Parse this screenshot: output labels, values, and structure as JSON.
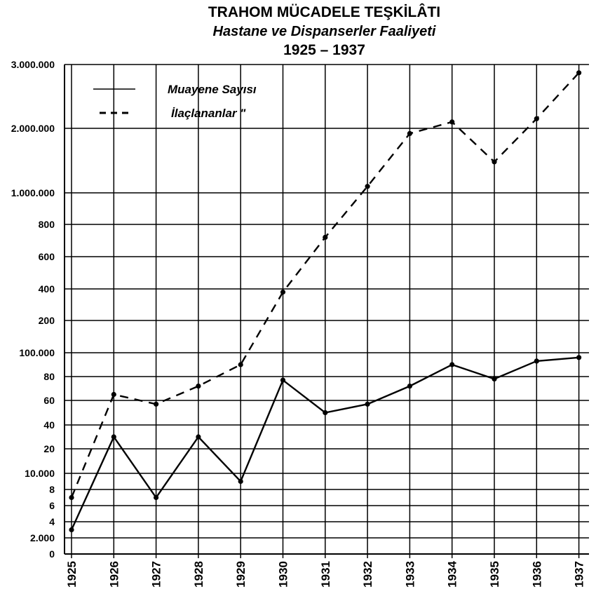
{
  "chart_data": {
    "type": "line",
    "title": "TRAHOM MÜCADELE TEŞKİLÂTI",
    "subtitle": "Hastane ve Dispanserler Faaliyeti",
    "period": "1925 – 1937",
    "xlabel": "",
    "ylabel": "",
    "x": [
      "1925",
      "1926",
      "1927",
      "1928",
      "1929",
      "1930",
      "1931",
      "1932",
      "1933",
      "1934",
      "1935",
      "1936",
      "1937"
    ],
    "yticks": [
      {
        "label": "0",
        "value": 0
      },
      {
        "label": "2.000",
        "value": 2000
      },
      {
        "label": "4",
        "value": 4000
      },
      {
        "label": "6",
        "value": 6000
      },
      {
        "label": "8",
        "value": 8000
      },
      {
        "label": "10.000",
        "value": 10000
      },
      {
        "label": "20",
        "value": 20000
      },
      {
        "label": "40",
        "value": 40000
      },
      {
        "label": "60",
        "value": 60000
      },
      {
        "label": "80",
        "value": 80000
      },
      {
        "label": "100.000",
        "value": 100000
      },
      {
        "label": "200",
        "value": 200000
      },
      {
        "label": "400",
        "value": 400000
      },
      {
        "label": "600",
        "value": 600000
      },
      {
        "label": "800",
        "value": 800000
      },
      {
        "label": "1.000.000",
        "value": 1000000
      },
      {
        "label": "2.000.000",
        "value": 2000000
      },
      {
        "label": "3.000.000",
        "value": 3000000
      }
    ],
    "ylim": [
      0,
      3000000
    ],
    "grid": true,
    "legend_position": "top-left",
    "series": [
      {
        "name": "Muayene Sayısı",
        "style": "solid",
        "values": [
          3000,
          30000,
          7000,
          30000,
          9000,
          77000,
          50000,
          57000,
          72000,
          90000,
          78000,
          93000,
          96000
        ]
      },
      {
        "name": "İlaçlananlar  \"",
        "style": "dashed",
        "values": [
          7000,
          65000,
          57000,
          72000,
          90000,
          380000,
          720000,
          1100000,
          1920000,
          2100000,
          1480000,
          2150000,
          2870000
        ]
      }
    ]
  }
}
